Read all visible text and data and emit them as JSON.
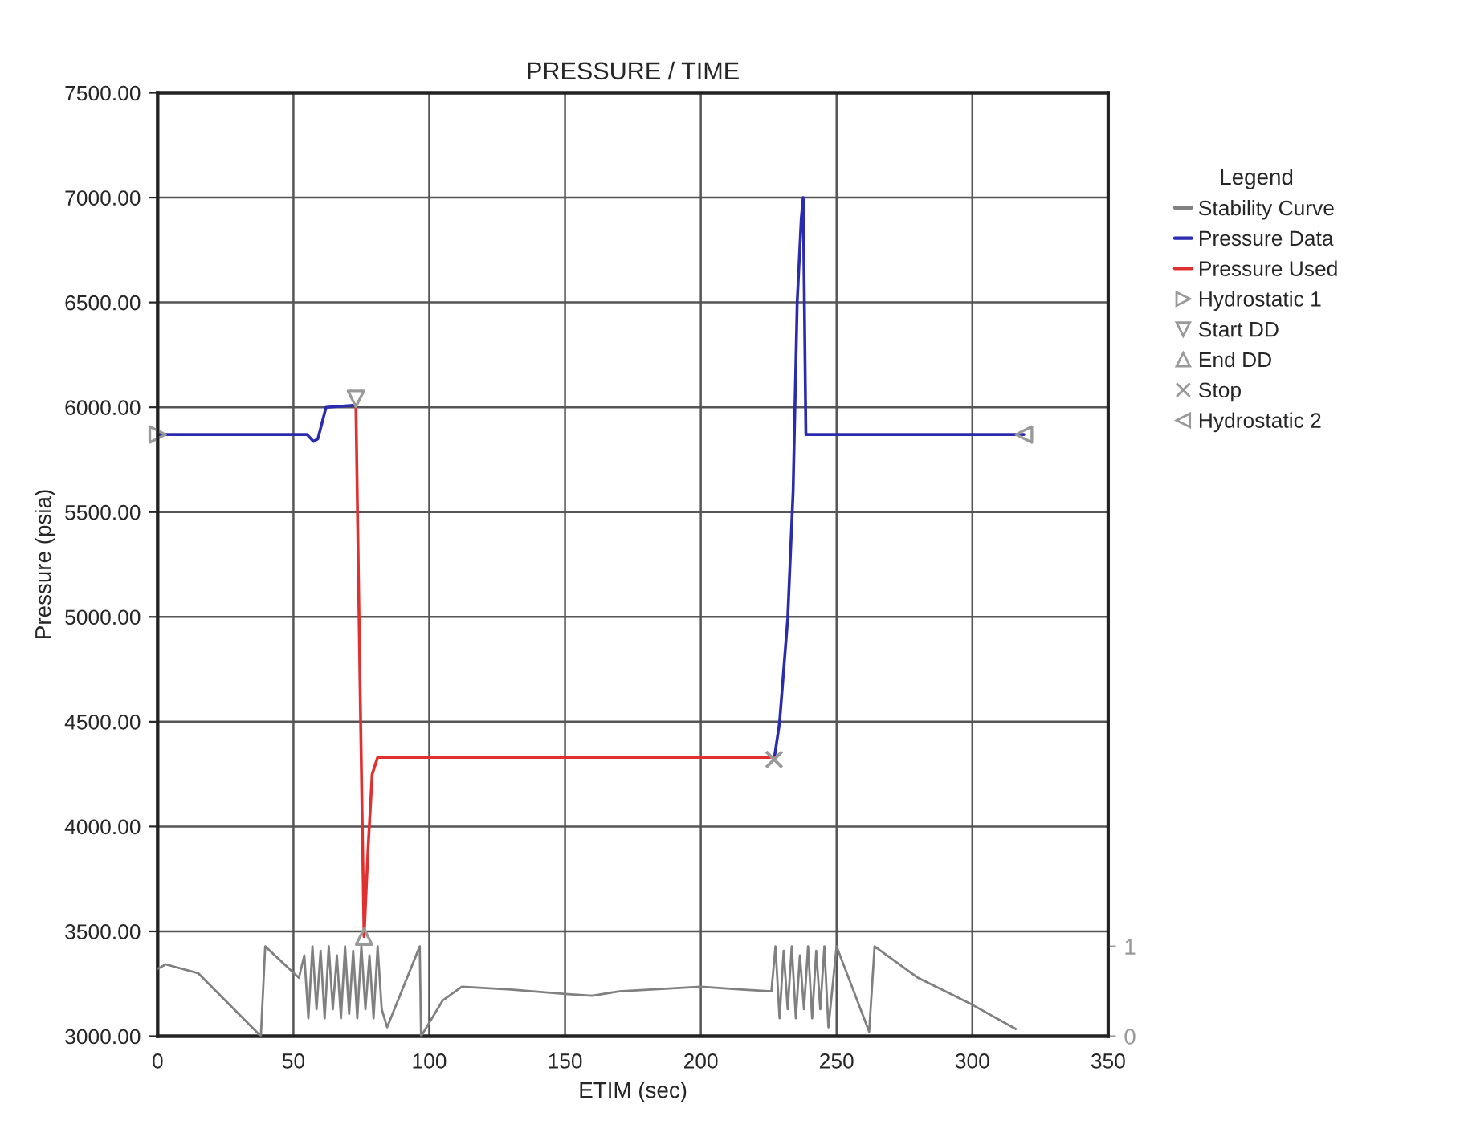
{
  "chart_data": {
    "type": "line",
    "title": "PRESSURE / TIME",
    "xlabel": "ETIM (sec)",
    "ylabel": "Pressure (psia)",
    "legend_title": "Legend",
    "legend": "right",
    "grid": true,
    "xlim": [
      0,
      350
    ],
    "xticks": [
      0,
      50,
      100,
      150,
      200,
      250,
      300,
      350
    ],
    "ylim": [
      3000,
      7500
    ],
    "yticks": [
      {
        "value": 3000,
        "label": "3000.00"
      },
      {
        "value": 3500,
        "label": "3500.00"
      },
      {
        "value": 4000,
        "label": "4000.00"
      },
      {
        "value": 4500,
        "label": "4500.00"
      },
      {
        "value": 5000,
        "label": "5000.00"
      },
      {
        "value": 5500,
        "label": "5500.00"
      },
      {
        "value": 6000,
        "label": "6000.00"
      },
      {
        "value": 6500,
        "label": "6500.00"
      },
      {
        "value": 7000,
        "label": "7000.00"
      },
      {
        "value": 7500,
        "label": "7500.00"
      }
    ],
    "y2lim": [
      0,
      10.5
    ],
    "y2ticks": [
      0,
      1
    ],
    "series": [
      {
        "name": "Stability Curve",
        "axis": "y2",
        "color": "#808080",
        "x": [
          0,
          3,
          15,
          38,
          39.6,
          52,
          54,
          55.5,
          57,
          58.5,
          60,
          61.5,
          63,
          64.5,
          66,
          67.5,
          69,
          70.5,
          72,
          73.5,
          75,
          76.5,
          78,
          79.5,
          81,
          82.5,
          84.5,
          96.5,
          97,
          105,
          112,
          130,
          150,
          160,
          170,
          200,
          215,
          226,
          227.5,
          229,
          230.5,
          232,
          233.5,
          235,
          236.5,
          238,
          239.5,
          241,
          242.5,
          244,
          245.5,
          247,
          250,
          262,
          264,
          280,
          300,
          316
        ],
        "values": [
          0.75,
          0.8,
          0.7,
          0.0,
          1.0,
          0.65,
          0.9,
          0.2,
          1.0,
          0.3,
          0.95,
          0.2,
          1.0,
          0.3,
          0.9,
          0.2,
          1.0,
          0.25,
          0.95,
          0.2,
          1.0,
          0.3,
          0.9,
          0.2,
          1.0,
          0.3,
          0.1,
          1.0,
          0.0,
          0.4,
          0.55,
          0.52,
          0.47,
          0.45,
          0.5,
          0.55,
          0.52,
          0.5,
          1.0,
          0.2,
          0.95,
          0.3,
          1.0,
          0.2,
          0.9,
          0.3,
          1.0,
          0.2,
          0.95,
          0.3,
          1.0,
          0.1,
          1.0,
          0.05,
          1.0,
          0.65,
          0.35,
          0.08
        ]
      },
      {
        "name": "Pressure Data",
        "color": "#2b2bb0",
        "x": [
          0,
          55,
          57.4,
          59,
          62,
          73,
          150,
          227,
          229,
          232,
          234,
          235.5,
          237,
          237.7,
          238.7,
          319
        ],
        "values": [
          5870,
          5870,
          5837,
          5850,
          6000,
          6010,
          null,
          4320,
          4495,
          4990,
          5600,
          6500,
          6900,
          7000,
          5870,
          5870
        ]
      },
      {
        "name": "Pressure Used",
        "color": "#e03030",
        "x": [
          73,
          74.5,
          76,
          77.5,
          79,
          81,
          227
        ],
        "values": [
          6010,
          4700,
          3475,
          3900,
          4250,
          4330,
          4330
        ]
      },
      {
        "name": "Hydrostatic 1",
        "type": "scatter",
        "marker": "triangle_right",
        "color": "#999999",
        "x": [
          0
        ],
        "values": [
          5870
        ]
      },
      {
        "name": "Start DD",
        "type": "scatter",
        "marker": "triangle_down",
        "color": "#999999",
        "x": [
          73
        ],
        "values": [
          6040
        ]
      },
      {
        "name": "End DD",
        "type": "scatter",
        "marker": "triangle_up",
        "color": "#999999",
        "x": [
          76
        ],
        "values": [
          3475
        ]
      },
      {
        "name": "Stop",
        "type": "scatter",
        "marker": "cross",
        "color": "#999999",
        "x": [
          227
        ],
        "values": [
          4320
        ]
      },
      {
        "name": "Hydrostatic 2",
        "type": "scatter",
        "marker": "triangle_left",
        "color": "#999999",
        "x": [
          319
        ],
        "values": [
          5870
        ]
      }
    ]
  }
}
